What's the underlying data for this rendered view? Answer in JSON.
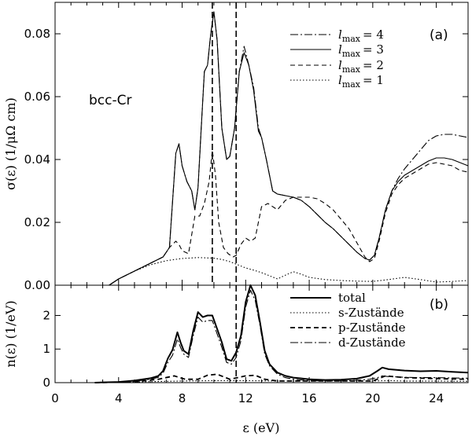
{
  "chart_data": [
    {
      "panel": "(a)",
      "type": "line",
      "annotation": "bcc-Cr",
      "ylabel": "σ(ε) (1/μΩ cm)",
      "xlim": [
        0,
        26
      ],
      "ylim": [
        0,
        0.09
      ],
      "xticks": [
        0,
        4,
        8,
        12,
        16,
        20,
        24
      ],
      "yticks": [
        0,
        0.02,
        0.04,
        0.06,
        0.08
      ],
      "ytick_labels": [
        "0.00",
        "0.02",
        "0.04",
        "0.06",
        "0.08"
      ],
      "grid": false,
      "legend_position": "top-right",
      "vlines": [
        9.9,
        11.4
      ],
      "series": [
        {
          "name": "l_max = 4",
          "dash": "10,3,2,3",
          "width": 1.1,
          "x": [
            3.4,
            4,
            5,
            6,
            6.8,
            7.2,
            7.6,
            7.8,
            8,
            8.3,
            8.6,
            8.8,
            9,
            9.2,
            9.4,
            9.6,
            9.8,
            10,
            10.2,
            10.5,
            10.8,
            11,
            11.3,
            11.6,
            11.9,
            12.2,
            12.5,
            12.8,
            13,
            13.3,
            13.7,
            14,
            14.5,
            15,
            15.5,
            16,
            16.5,
            17,
            17.5,
            18,
            18.5,
            19,
            19.5,
            19.8,
            20.1,
            20.4,
            20.8,
            21.2,
            21.6,
            22,
            22.5,
            23,
            23.5,
            24,
            24.5,
            25,
            25.5,
            26
          ],
          "values": [
            0,
            0.002,
            0.0045,
            0.007,
            0.009,
            0.012,
            0.042,
            0.045,
            0.038,
            0.033,
            0.03,
            0.024,
            0.031,
            0.05,
            0.068,
            0.07,
            0.08,
            0.087,
            0.078,
            0.05,
            0.04,
            0.041,
            0.05,
            0.068,
            0.076,
            0.07,
            0.063,
            0.05,
            0.047,
            0.04,
            0.03,
            0.029,
            0.0285,
            0.028,
            0.027,
            0.025,
            0.0225,
            0.02,
            0.018,
            0.0155,
            0.013,
            0.0105,
            0.0085,
            0.008,
            0.0095,
            0.015,
            0.024,
            0.03,
            0.034,
            0.037,
            0.04,
            0.043,
            0.046,
            0.0475,
            0.048,
            0.048,
            0.0475,
            0.047
          ]
        },
        {
          "name": "l_max = 3",
          "dash": "",
          "width": 1.1,
          "x": [
            3.4,
            4,
            5,
            6,
            6.8,
            7.2,
            7.6,
            7.8,
            8,
            8.3,
            8.6,
            8.8,
            9,
            9.2,
            9.4,
            9.6,
            9.8,
            10,
            10.2,
            10.5,
            10.8,
            11,
            11.3,
            11.6,
            11.9,
            12.2,
            12.5,
            12.8,
            13,
            13.3,
            13.7,
            14,
            14.5,
            15,
            15.5,
            16,
            16.5,
            17,
            17.5,
            18,
            18.5,
            19,
            19.5,
            19.8,
            20.1,
            20.4,
            20.8,
            21.2,
            21.6,
            22,
            22.5,
            23,
            23.5,
            24,
            24.5,
            25,
            25.5,
            26
          ],
          "values": [
            0,
            0.002,
            0.0045,
            0.007,
            0.009,
            0.012,
            0.042,
            0.045,
            0.038,
            0.033,
            0.03,
            0.024,
            0.031,
            0.05,
            0.068,
            0.07,
            0.08,
            0.087,
            0.078,
            0.05,
            0.04,
            0.041,
            0.05,
            0.068,
            0.074,
            0.07,
            0.062,
            0.049,
            0.047,
            0.04,
            0.03,
            0.029,
            0.0285,
            0.028,
            0.027,
            0.025,
            0.0225,
            0.02,
            0.018,
            0.0155,
            0.013,
            0.0105,
            0.0085,
            0.008,
            0.0095,
            0.015,
            0.024,
            0.03,
            0.033,
            0.035,
            0.0365,
            0.038,
            0.0395,
            0.0405,
            0.0405,
            0.04,
            0.039,
            0.038
          ]
        },
        {
          "name": "l_max = 2",
          "dash": "6,4",
          "width": 1.1,
          "x": [
            3.4,
            4,
            5,
            6,
            6.8,
            7.2,
            7.6,
            7.8,
            8,
            8.4,
            8.8,
            9.1,
            9.4,
            9.7,
            9.9,
            10.1,
            10.3,
            10.6,
            10.9,
            11.2,
            11.4,
            11.7,
            12,
            12.3,
            12.6,
            13,
            13.4,
            14,
            14.5,
            15,
            15.5,
            16,
            16.5,
            17,
            17.5,
            18,
            18.5,
            19,
            19.5,
            19.8,
            20.1,
            20.4,
            20.8,
            21.2,
            21.6,
            22,
            22.5,
            23,
            23.5,
            24,
            24.5,
            25,
            25.5,
            26
          ],
          "values": [
            0,
            0.002,
            0.0045,
            0.007,
            0.009,
            0.012,
            0.014,
            0.013,
            0.011,
            0.01,
            0.022,
            0.022,
            0.026,
            0.033,
            0.043,
            0.035,
            0.02,
            0.012,
            0.01,
            0.009,
            0.0095,
            0.013,
            0.015,
            0.014,
            0.015,
            0.025,
            0.026,
            0.024,
            0.027,
            0.028,
            0.028,
            0.028,
            0.0275,
            0.026,
            0.024,
            0.021,
            0.018,
            0.0135,
            0.009,
            0.0075,
            0.0085,
            0.014,
            0.023,
            0.029,
            0.032,
            0.034,
            0.0355,
            0.037,
            0.0385,
            0.039,
            0.0385,
            0.038,
            0.0365,
            0.036
          ]
        },
        {
          "name": "l_max = 1",
          "dash": "1.5,2.5",
          "width": 1.1,
          "x": [
            3.4,
            4,
            5,
            6,
            7,
            8,
            9,
            10,
            10.5,
            11,
            11.5,
            12,
            12.5,
            13,
            13.5,
            14,
            14.5,
            15,
            15.5,
            16,
            17,
            18,
            19,
            20,
            21,
            22,
            23,
            24,
            25,
            26
          ],
          "values": [
            0,
            0.002,
            0.0045,
            0.0065,
            0.0078,
            0.0085,
            0.0088,
            0.0086,
            0.0082,
            0.0075,
            0.0065,
            0.0055,
            0.0048,
            0.004,
            0.003,
            0.002,
            0.0032,
            0.0043,
            0.0035,
            0.0025,
            0.0018,
            0.0015,
            0.0013,
            0.0012,
            0.0018,
            0.0025,
            0.0018,
            0.001,
            0.0012,
            0.0015
          ]
        }
      ]
    },
    {
      "panel": "(b)",
      "type": "line",
      "xlabel": "ε (eV)",
      "ylabel": "n(ε) (1/eV)",
      "xlim": [
        0,
        26
      ],
      "ylim": [
        0,
        2.9
      ],
      "xticks": [
        0,
        4,
        8,
        12,
        16,
        20,
        24
      ],
      "yticks": [
        0,
        1,
        2
      ],
      "ytick_labels": [
        "0",
        "1",
        "2"
      ],
      "grid": false,
      "legend_position": "top-right",
      "vlines": [
        11.4
      ],
      "series": [
        {
          "name": "total",
          "dash": "",
          "width": 2.0,
          "x": [
            2.5,
            4,
            5,
            6,
            6.5,
            6.8,
            7.1,
            7.4,
            7.7,
            7.9,
            8.1,
            8.4,
            8.7,
            9,
            9.3,
            9.6,
            9.9,
            10.2,
            10.5,
            10.8,
            11.1,
            11.4,
            11.7,
            12,
            12.3,
            12.6,
            12.9,
            13.2,
            13.5,
            14,
            14.5,
            15,
            16,
            17,
            18,
            19,
            19.8,
            20.3,
            20.6,
            21,
            21.5,
            22,
            23,
            24,
            25,
            26
          ],
          "values": [
            0,
            0.02,
            0.06,
            0.13,
            0.2,
            0.35,
            0.72,
            0.98,
            1.5,
            1.2,
            0.95,
            0.85,
            1.55,
            2.1,
            1.95,
            2.0,
            2.0,
            1.6,
            1.2,
            0.7,
            0.65,
            0.9,
            1.4,
            2.4,
            2.9,
            2.6,
            1.8,
            0.95,
            0.55,
            0.3,
            0.2,
            0.15,
            0.1,
            0.08,
            0.09,
            0.12,
            0.2,
            0.35,
            0.45,
            0.4,
            0.38,
            0.36,
            0.34,
            0.35,
            0.32,
            0.3
          ]
        },
        {
          "name": "s-Zustände",
          "dash": "1.5,2.5",
          "width": 1.1,
          "x": [
            2.5,
            5,
            8,
            10,
            12,
            14,
            16,
            18,
            20,
            21,
            22,
            24,
            26
          ],
          "values": [
            0,
            0.02,
            0.05,
            0.06,
            0.06,
            0.05,
            0.05,
            0.05,
            0.05,
            0.06,
            0.05,
            0.05,
            0.04
          ]
        },
        {
          "name": "p-Zustände",
          "dash": "6,4",
          "width": 1.8,
          "x": [
            2.5,
            5,
            6.5,
            7.5,
            8.2,
            9,
            9.6,
            10.2,
            11,
            12,
            12.6,
            13.2,
            14,
            16,
            18,
            20,
            20.8,
            22,
            24,
            26
          ],
          "values": [
            0,
            0.02,
            0.1,
            0.2,
            0.1,
            0.1,
            0.22,
            0.25,
            0.1,
            0.2,
            0.22,
            0.1,
            0.05,
            0.05,
            0.05,
            0.05,
            0.2,
            0.15,
            0.12,
            0.1
          ]
        },
        {
          "name": "d-Zustände",
          "dash": "10,3,2,3",
          "width": 1.1,
          "x": [
            2.5,
            4,
            5,
            6,
            6.5,
            6.8,
            7.1,
            7.4,
            7.7,
            7.9,
            8.1,
            8.4,
            8.7,
            9,
            9.3,
            9.6,
            9.9,
            10.2,
            10.5,
            10.8,
            11.1,
            11.4,
            11.7,
            12,
            12.3,
            12.6,
            12.9,
            13.2,
            13.5,
            14,
            14.5,
            15,
            16,
            17,
            18,
            19,
            19.8,
            20.3,
            20.6,
            21,
            21.5,
            22,
            23,
            24,
            25,
            26
          ],
          "values": [
            0,
            0.01,
            0.04,
            0.1,
            0.16,
            0.28,
            0.6,
            0.82,
            1.3,
            1.05,
            0.85,
            0.75,
            1.4,
            1.95,
            1.8,
            1.85,
            1.85,
            1.45,
            1.05,
            0.6,
            0.55,
            0.75,
            1.25,
            2.25,
            2.75,
            2.45,
            1.7,
            0.85,
            0.5,
            0.25,
            0.15,
            0.1,
            0.06,
            0.05,
            0.05,
            0.07,
            0.1,
            0.15,
            0.2,
            0.18,
            0.17,
            0.16,
            0.15,
            0.15,
            0.14,
            0.13
          ]
        }
      ]
    }
  ],
  "legend_a": [
    {
      "label": "l",
      "sub": "max",
      "value": "= 4"
    },
    {
      "label": "l",
      "sub": "max",
      "value": "= 3"
    },
    {
      "label": "l",
      "sub": "max",
      "value": "= 2"
    },
    {
      "label": "l",
      "sub": "max",
      "value": "= 1"
    }
  ],
  "legend_b": [
    "total",
    "s-Zustände",
    "p-Zustände",
    "d-Zustände"
  ]
}
